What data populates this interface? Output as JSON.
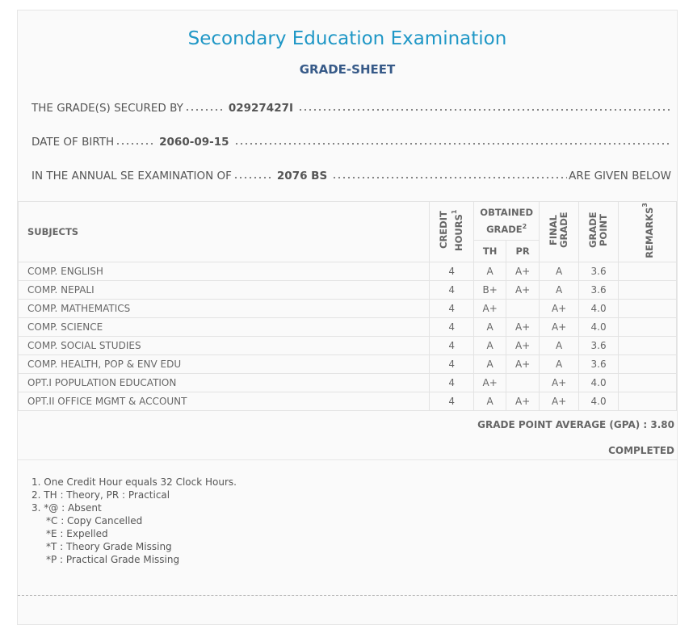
{
  "header": {
    "title": "Secondary Education Examination",
    "subtitle": "GRADE-SHEET"
  },
  "info": [
    {
      "label": "THE GRADE(S) SECURED BY",
      "value": "02927427I"
    },
    {
      "label": "DATE OF BIRTH",
      "value": "2060-09-15"
    },
    {
      "label": "IN THE ANNUAL SE EXAMINATION OF",
      "value": "2076 BS",
      "suffix": "ARE GIVEN BELOW"
    }
  ],
  "table": {
    "headers": {
      "subjects": "SUBJECTS",
      "credit": {
        "text": "CREDIT HOURS",
        "note": "1"
      },
      "obtained": {
        "text": "OBTAINED GRADE",
        "note": "2"
      },
      "th": "TH",
      "pr": "PR",
      "final": "FINAL GRADE",
      "grade_point": "GRADE POINT",
      "remarks": {
        "text": "REMARKS",
        "note": "3"
      }
    },
    "rows": [
      {
        "subject": "COMP. ENGLISH",
        "credit": 4,
        "th": "A",
        "pr": "A+",
        "final": "A",
        "grade_point": "3.6"
      },
      {
        "subject": "COMP. NEPALI",
        "credit": 4,
        "th": "B+",
        "pr": "A+",
        "final": "A",
        "grade_point": "3.6"
      },
      {
        "subject": "COMP. MATHEMATICS",
        "credit": 4,
        "th": "A+",
        "pr": null,
        "final": "A+",
        "grade_point": "4.0"
      },
      {
        "subject": "COMP. SCIENCE",
        "credit": 4,
        "th": "A",
        "pr": "A+",
        "final": "A+",
        "grade_point": "4.0"
      },
      {
        "subject": "COMP. SOCIAL STUDIES",
        "credit": 4,
        "th": "A",
        "pr": "A+",
        "final": "A",
        "grade_point": "3.6"
      },
      {
        "subject": "COMP. HEALTH, POP & ENV EDU",
        "credit": 4,
        "th": "A",
        "pr": "A+",
        "final": "A",
        "grade_point": "3.6"
      },
      {
        "subject": "OPT.I POPULATION EDUCATION",
        "credit": 4,
        "th": "A+",
        "pr": null,
        "final": "A+",
        "grade_point": "4.0"
      },
      {
        "subject": "OPT.II OFFICE MGMT & ACCOUNT",
        "credit": 4,
        "th": "A",
        "pr": "A+",
        "final": "A+",
        "grade_point": "4.0"
      }
    ]
  },
  "gpa": {
    "label": "GRADE POINT AVERAGE (GPA) :",
    "value": "3.80"
  },
  "status": "COMPLETED",
  "notes": [
    {
      "num": "1.",
      "text": "One Credit Hour equals 32 Clock Hours."
    },
    {
      "num": "2.",
      "text": "TH : Theory, PR : Practical"
    },
    {
      "num": "3.",
      "text": "*@ : Absent",
      "more": [
        "*C : Copy Cancelled",
        "*E : Expelled",
        "*T : Theory Grade Missing",
        "*P : Practical Grade Missing"
      ]
    }
  ]
}
